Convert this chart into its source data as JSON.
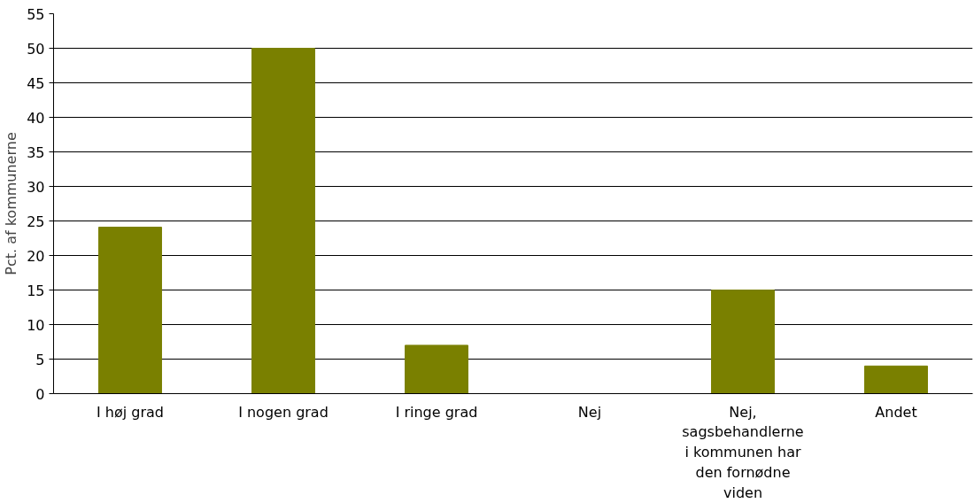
{
  "chart_data": {
    "type": "bar",
    "ylabel": "Pct. af kommunerne",
    "categories": [
      "I høj grad",
      "I nogen grad",
      "I ringe grad",
      "Nej",
      "Nej, sagsbehandlerne i kommunen har den fornødne viden",
      "Andet"
    ],
    "values": [
      24.1,
      50,
      7,
      0,
      15,
      4
    ],
    "color": "#7a8000",
    "ylim": [
      0,
      55
    ],
    "yticks": [
      0,
      5,
      10,
      15,
      20,
      25,
      30,
      35,
      40,
      45,
      50,
      55
    ],
    "grid": "y"
  }
}
